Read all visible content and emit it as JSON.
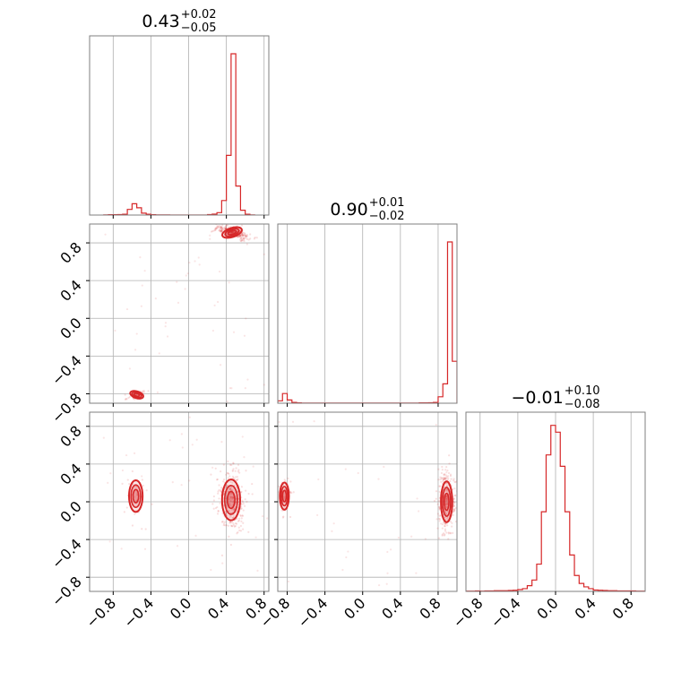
{
  "chart_data": {
    "type": "corner",
    "color": "#d62728",
    "grid": true,
    "tick_values": [
      -0.8,
      -0.4,
      0.0,
      0.4,
      0.8
    ],
    "tick_labels": [
      "−0.8",
      "−0.4",
      "0.0",
      "0.4",
      "0.8"
    ],
    "params": [
      {
        "title": {
          "median": "0.43",
          "plus": "+0.02",
          "minus": "−0.05"
        },
        "xlim": [
          -1.05,
          0.85
        ],
        "hist": {
          "bins": [
            -0.9,
            -0.85,
            -0.8,
            -0.75,
            -0.7,
            -0.65,
            -0.6,
            -0.55,
            -0.5,
            -0.45,
            -0.4,
            -0.35,
            -0.3,
            -0.25,
            -0.2,
            -0.15,
            -0.1,
            -0.05,
            0.0,
            0.05,
            0.1,
            0.15,
            0.2,
            0.25,
            0.3,
            0.35,
            0.4,
            0.45,
            0.5,
            0.55,
            0.6,
            0.65
          ],
          "counts": [
            0.01,
            0.02,
            0.02,
            0.03,
            0.05,
            0.35,
            0.7,
            0.45,
            0.12,
            0.05,
            0.02,
            0.01,
            0.01,
            0.01,
            0.0,
            0.0,
            0.0,
            0.0,
            0.0,
            0.0,
            0.0,
            0.0,
            0.03,
            0.06,
            0.15,
            0.9,
            3.7,
            10.0,
            1.8,
            0.3,
            0.05,
            0.01
          ],
          "bin_width": 0.05,
          "ymax": 11.0
        }
      },
      {
        "title": {
          "median": "0.90",
          "plus": "+0.01",
          "minus": "−0.02"
        },
        "xlim": [
          -0.9,
          1.0
        ],
        "hist": {
          "bins": [
            -0.9,
            -0.85,
            -0.8,
            -0.75,
            -0.7,
            -0.65,
            -0.6,
            -0.55,
            -0.5,
            -0.45,
            -0.4,
            -0.35,
            -0.3,
            -0.25,
            -0.2,
            -0.15,
            -0.1,
            -0.05,
            0.0,
            0.05,
            0.1,
            0.15,
            0.2,
            0.25,
            0.3,
            0.35,
            0.4,
            0.45,
            0.5,
            0.55,
            0.6,
            0.65,
            0.7,
            0.75,
            0.8,
            0.85,
            0.9,
            0.95
          ],
          "counts": [
            0.15,
            0.6,
            0.2,
            0.05,
            0.02,
            0.01,
            0.01,
            0.01,
            0.01,
            0.01,
            0.01,
            0.01,
            0.01,
            0.01,
            0.01,
            0.01,
            0.01,
            0.01,
            0.01,
            0.01,
            0.01,
            0.01,
            0.01,
            0.01,
            0.01,
            0.01,
            0.01,
            0.01,
            0.01,
            0.01,
            0.02,
            0.02,
            0.03,
            0.05,
            0.4,
            1.2,
            10.0,
            2.6
          ],
          "bin_width": 0.05,
          "ymax": 11.0
        }
      },
      {
        "title": {
          "median": "−0.01",
          "plus": "+0.10",
          "minus": "−0.08"
        },
        "xlim": [
          -0.95,
          0.95
        ],
        "hist": {
          "bins": [
            -0.95,
            -0.9,
            -0.85,
            -0.8,
            -0.75,
            -0.7,
            -0.65,
            -0.6,
            -0.55,
            -0.5,
            -0.45,
            -0.4,
            -0.35,
            -0.3,
            -0.25,
            -0.2,
            -0.15,
            -0.1,
            -0.05,
            0.0,
            0.05,
            0.1,
            0.15,
            0.2,
            0.25,
            0.3,
            0.35,
            0.4,
            0.45,
            0.5,
            0.55,
            0.6,
            0.65,
            0.7,
            0.75,
            0.8,
            0.85,
            0.9
          ],
          "counts": [
            0.01,
            0.01,
            0.02,
            0.01,
            0.02,
            0.02,
            0.03,
            0.03,
            0.03,
            0.04,
            0.05,
            0.08,
            0.12,
            0.25,
            0.5,
            1.2,
            3.5,
            6.0,
            7.3,
            7.0,
            5.5,
            3.5,
            1.6,
            0.7,
            0.35,
            0.2,
            0.12,
            0.06,
            0.05,
            0.04,
            0.03,
            0.03,
            0.02,
            0.02,
            0.02,
            0.02,
            0.01,
            0.01
          ],
          "bin_width": 0.05,
          "ymax": 7.8
        }
      }
    ],
    "pairs": [
      {
        "row": 1,
        "col": 0,
        "modes": [
          {
            "x": 0.46,
            "y": 0.91,
            "sx": 0.045,
            "sy": 0.02,
            "rho": -0.6,
            "w": 0.85
          },
          {
            "x": -0.55,
            "y": -0.81,
            "sx": 0.03,
            "sy": 0.015,
            "rho": 0.6,
            "w": 0.15
          }
        ],
        "scatter_seed": 11
      },
      {
        "row": 2,
        "col": 0,
        "modes": [
          {
            "x": 0.45,
            "y": 0.02,
            "sx": 0.04,
            "sy": 0.09,
            "rho": 0.0,
            "w": 0.85
          },
          {
            "x": -0.56,
            "y": 0.06,
            "sx": 0.03,
            "sy": 0.07,
            "rho": 0.0,
            "w": 0.15
          }
        ],
        "scatter_seed": 23
      },
      {
        "row": 2,
        "col": 1,
        "modes": [
          {
            "x": 0.89,
            "y": 0.0,
            "sx": 0.025,
            "sy": 0.09,
            "rho": 0.0,
            "w": 0.85
          },
          {
            "x": -0.83,
            "y": 0.06,
            "sx": 0.02,
            "sy": 0.06,
            "rho": 0.0,
            "w": 0.15
          }
        ],
        "scatter_seed": 37
      }
    ]
  }
}
